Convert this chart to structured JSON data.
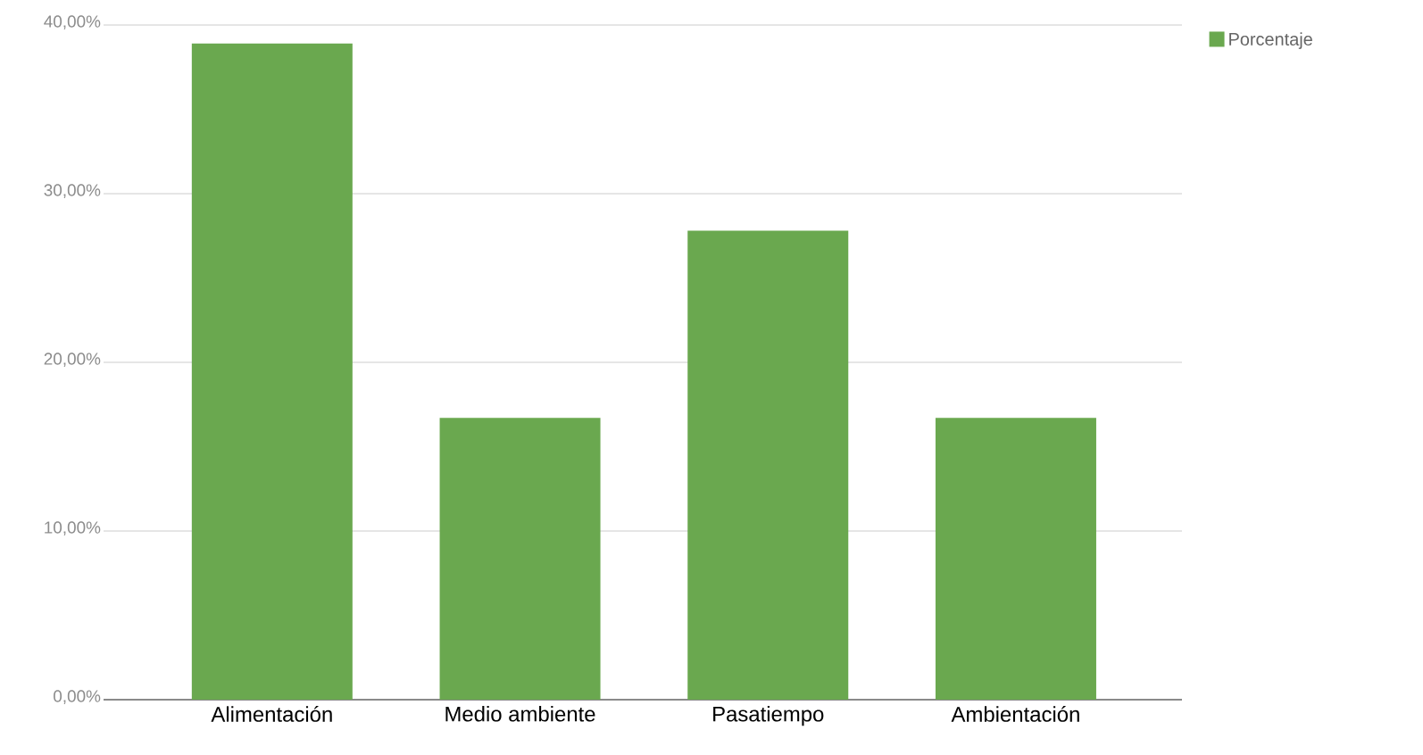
{
  "chart_data": {
    "type": "bar",
    "categories": [
      "Alimentación",
      "Medio ambiente",
      "Pasatiempo",
      "Ambientación"
    ],
    "series": [
      {
        "name": "Porcentaje",
        "color": "#6aa84f",
        "values": [
          38.9,
          16.7,
          27.8,
          16.7
        ]
      }
    ],
    "ylim": [
      0,
      40
    ],
    "yticks": [
      {
        "value": 0,
        "label": "0,00%"
      },
      {
        "value": 10,
        "label": "10,00%"
      },
      {
        "value": 20,
        "label": "20,00%"
      },
      {
        "value": 30,
        "label": "30,00%"
      },
      {
        "value": 40,
        "label": "40,00%"
      }
    ],
    "grid": "y",
    "legend": "top right"
  }
}
